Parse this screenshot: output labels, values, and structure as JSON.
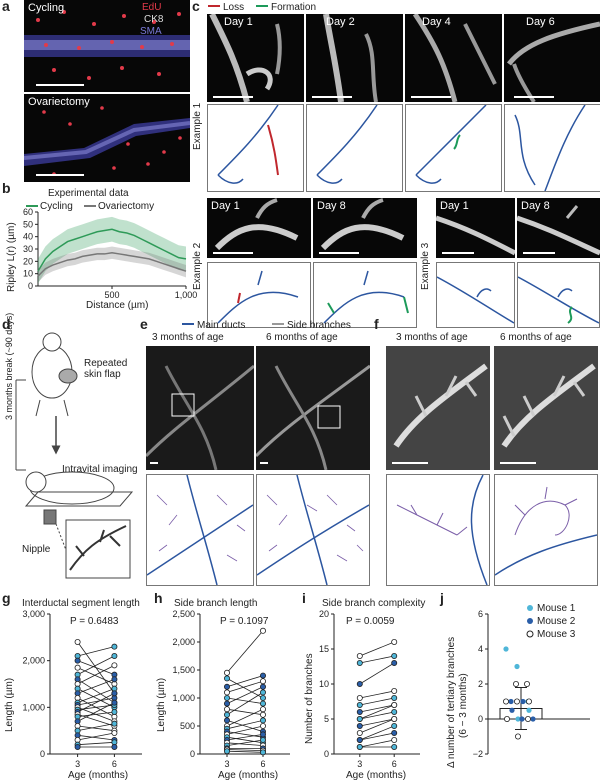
{
  "panels": {
    "a": "a",
    "b": "b",
    "c": "c",
    "d": "d",
    "e": "e",
    "f": "f",
    "g": "g",
    "h": "h",
    "i": "i",
    "j": "j"
  },
  "a": {
    "cycling": "Cycling",
    "ovariectomy": "Ovariectomy",
    "ch1": "EdU",
    "ch2": "CK8",
    "ch3": "SMA"
  },
  "b": {
    "title": "Experimental data",
    "legend": [
      "Cycling",
      "Ovariectomy"
    ],
    "ylabel": "Ripley L(r) (µm)",
    "xlabel": "Distance (µm)",
    "yticks": [
      "0",
      "10",
      "20",
      "30",
      "40",
      "50",
      "60"
    ],
    "xticks": [
      "500",
      "1,000"
    ]
  },
  "c": {
    "legend": [
      "Loss",
      "Formation"
    ],
    "example1": "Example 1",
    "example2": "Example 2",
    "example3": "Example 3",
    "ex1_days": [
      "Day 1",
      "Day 2",
      "Day 4",
      "Day 6"
    ],
    "ex2_days": [
      "Day 1",
      "Day 8"
    ],
    "ex3_days": [
      "Day 1",
      "Day 8"
    ]
  },
  "d": {
    "break": "3 months break (~90 days)",
    "flap": "Repeated skin flap",
    "imaging": "Intravital imaging",
    "nipple": "Nipple"
  },
  "e": {
    "legend": [
      "Main ducts",
      "Side branches"
    ],
    "age3": "3 months of age",
    "age6": "6 months of age"
  },
  "f": {
    "age3": "3 months of age",
    "age6": "6 months of age"
  },
  "g": {
    "title": "Interductal segment length",
    "p": "P = 0.6483",
    "ylabel": "Length (µm)",
    "xlabel": "Age (months)",
    "yticks": [
      "0",
      "1,000",
      "2,000",
      "3,000"
    ],
    "xticks": [
      "3",
      "6"
    ]
  },
  "h": {
    "title": "Side branch length",
    "p": "P = 0.1097",
    "ylabel": "Length (µm)",
    "xlabel": "Age (months)",
    "yticks": [
      "0",
      "500",
      "1,000",
      "1,500",
      "2,000",
      "2,500"
    ],
    "xticks": [
      "3",
      "6"
    ]
  },
  "i": {
    "title": "Side branch complexity",
    "p": "P = 0.0059",
    "ylabel": "Number of branches",
    "xlabel": "Age (months)",
    "yticks": [
      "0",
      "5",
      "10",
      "15",
      "20"
    ],
    "xticks": [
      "3",
      "6"
    ]
  },
  "j": {
    "legend": [
      "Mouse 1",
      "Mouse 2",
      "Mouse 3"
    ],
    "ylabel1": "Δ number of tertiary branches",
    "ylabel2": "(6 − 3 months)",
    "yticks": [
      "−2",
      "0",
      "2",
      "4",
      "6"
    ]
  },
  "colors": {
    "cycling": "#2e9a58",
    "ovariectomy": "#777777",
    "loss": "#c0272d",
    "formation": "#1d9a5a",
    "main": "#2c56a0",
    "side": "#7a5ea8",
    "mouse1": "#4fb6d8",
    "mouse2": "#2a5ea8",
    "mouse3": "#ffffff"
  },
  "chart_data": [
    {
      "type": "line",
      "title": "Experimental data",
      "xlabel": "Distance (µm)",
      "ylabel": "Ripley L(r) (µm)",
      "xlim": [
        0,
        1000
      ],
      "ylim": [
        0,
        60
      ],
      "x": [
        0,
        50,
        100,
        150,
        200,
        250,
        300,
        350,
        400,
        450,
        500,
        550,
        600,
        650,
        700,
        750,
        800,
        850,
        900,
        950,
        1000
      ],
      "series": [
        {
          "name": "Cycling",
          "values": [
            12,
            22,
            28,
            32,
            36,
            38,
            40,
            42,
            44,
            45,
            46,
            44,
            43,
            41,
            38,
            35,
            32,
            29,
            26,
            23,
            22
          ]
        },
        {
          "name": "Ovariectomy",
          "values": [
            8,
            14,
            17,
            19,
            21,
            22,
            24,
            25,
            26,
            26,
            27,
            26,
            25,
            24,
            23,
            22,
            20,
            18,
            16,
            14,
            12
          ]
        }
      ]
    },
    {
      "type": "scatter",
      "title": "Interductal segment length",
      "xlabel": "Age (months)",
      "ylabel": "Length (µm)",
      "ylim": [
        0,
        3000
      ],
      "categories": [
        "3",
        "6"
      ],
      "pairs": [
        [
          2400,
          1300
        ],
        [
          2100,
          2300
        ],
        [
          2000,
          1700
        ],
        [
          1850,
          1500
        ],
        [
          1700,
          2100
        ],
        [
          1600,
          1100
        ],
        [
          1500,
          1900
        ],
        [
          1400,
          1000
        ],
        [
          1300,
          1600
        ],
        [
          1200,
          800
        ],
        [
          1100,
          1400
        ],
        [
          1050,
          1200
        ],
        [
          1000,
          700
        ],
        [
          950,
          1050
        ],
        [
          900,
          1300
        ],
        [
          850,
          600
        ],
        [
          800,
          900
        ],
        [
          700,
          1100
        ],
        [
          600,
          500
        ],
        [
          500,
          650
        ],
        [
          400,
          300
        ],
        [
          300,
          450
        ],
        [
          200,
          250
        ],
        [
          150,
          150
        ]
      ]
    },
    {
      "type": "scatter",
      "title": "Side branch length",
      "xlabel": "Age (months)",
      "ylabel": "Length (µm)",
      "ylim": [
        0,
        2500
      ],
      "categories": [
        "3",
        "6"
      ],
      "pairs": [
        [
          1450,
          2200
        ],
        [
          1350,
          1000
        ],
        [
          1200,
          1400
        ],
        [
          1100,
          1300
        ],
        [
          1000,
          900
        ],
        [
          900,
          1200
        ],
        [
          800,
          700
        ],
        [
          700,
          1100
        ],
        [
          600,
          400
        ],
        [
          500,
          800
        ],
        [
          450,
          600
        ],
        [
          400,
          300
        ],
        [
          350,
          500
        ],
        [
          300,
          200
        ],
        [
          250,
          350
        ],
        [
          200,
          150
        ],
        [
          150,
          250
        ],
        [
          100,
          100
        ],
        [
          80,
          60
        ],
        [
          50,
          30
        ]
      ]
    },
    {
      "type": "scatter",
      "title": "Side branch complexity",
      "xlabel": "Age (months)",
      "ylabel": "Number of branches",
      "ylim": [
        0,
        20
      ],
      "categories": [
        "3",
        "6"
      ],
      "pairs": [
        [
          14,
          16
        ],
        [
          13,
          14
        ],
        [
          10,
          13
        ],
        [
          8,
          9
        ],
        [
          7,
          8
        ],
        [
          6,
          7
        ],
        [
          5,
          7
        ],
        [
          5,
          6
        ],
        [
          4,
          5
        ],
        [
          3,
          5
        ],
        [
          2,
          4
        ],
        [
          2,
          3
        ],
        [
          1,
          2
        ],
        [
          1,
          1
        ]
      ]
    },
    {
      "type": "bar",
      "ylabel": "Δ number of tertiary branches (6 − 3 months)",
      "ylim": [
        -2,
        6
      ],
      "categories": [
        "Δ"
      ],
      "values": [
        0.6
      ],
      "error": 1.2,
      "points": [
        {
          "mouse": "Mouse 1",
          "values": [
            4,
            3,
            1,
            0,
            0,
            0.5
          ]
        },
        {
          "mouse": "Mouse 2",
          "values": [
            1,
            0,
            0,
            0.5,
            1
          ]
        },
        {
          "mouse": "Mouse 3",
          "values": [
            2,
            2,
            1,
            1,
            0,
            0,
            -1,
            1
          ]
        }
      ]
    }
  ]
}
